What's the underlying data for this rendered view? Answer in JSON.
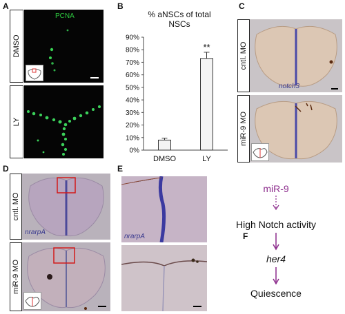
{
  "panels": {
    "A": {
      "letter": "A",
      "stain": "PCNA",
      "conditions": [
        "DMSO",
        "LY"
      ]
    },
    "B": {
      "letter": "B",
      "title_line1": "% aNSCs of total",
      "title_line2": "NSCs",
      "significance": "**"
    },
    "C": {
      "letter": "C",
      "conditions": [
        "cntl. MO",
        "miR-9 MO"
      ],
      "probe": "notch3"
    },
    "D": {
      "letter": "D",
      "conditions": [
        "cntl. MO",
        "miR-9 MO"
      ],
      "probe": "nrarpA"
    },
    "E": {
      "letter": "E",
      "probe": "nrarpA"
    },
    "F": {
      "letter": "F",
      "steps": [
        "miR-9",
        "High Notch activity",
        "her4",
        "Quiescence"
      ],
      "colors": {
        "mir9": "#8b2a8b",
        "arrow": "#8b2a8b",
        "text": "#111111"
      }
    }
  },
  "chart_data": {
    "type": "bar",
    "title": "% aNSCs of total NSCs",
    "categories": [
      "DMSO",
      "LY"
    ],
    "values": [
      8,
      73
    ],
    "errors": [
      1.5,
      5
    ],
    "ylim": [
      0,
      90
    ],
    "yticks": [
      "0%",
      "10%",
      "20%",
      "30%",
      "40%",
      "50%",
      "60%",
      "70%",
      "80%",
      "90%"
    ],
    "annotations": [
      "**"
    ],
    "grid": false
  }
}
